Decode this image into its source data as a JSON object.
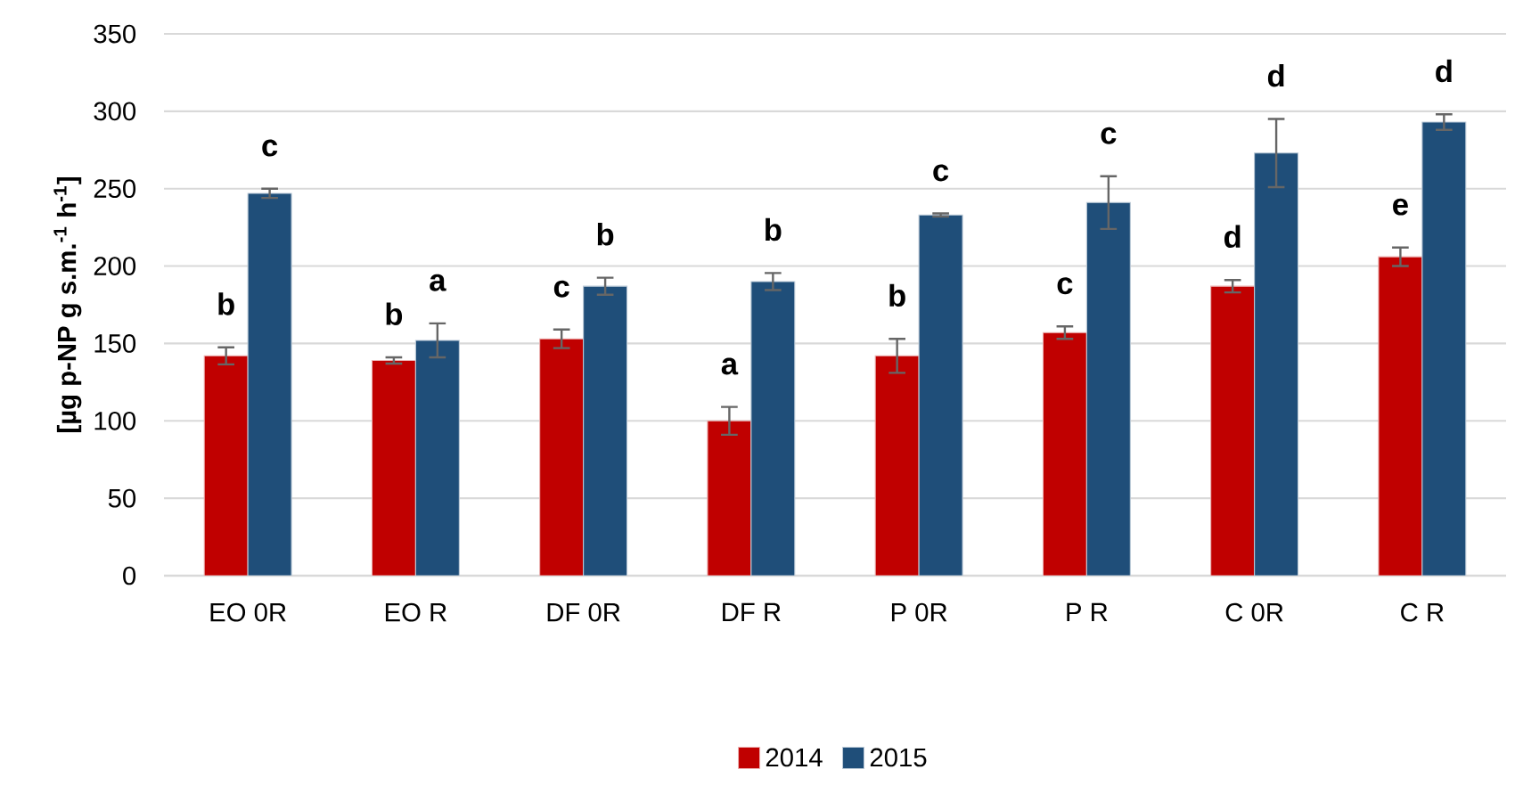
{
  "chart_data": {
    "type": "bar",
    "ylabel": "[µg p-NP g s.m.$^{-1}$ h$^{-1}$]",
    "categories": [
      "EO 0R",
      "EO R",
      "DF 0R",
      "DF R",
      "P 0R",
      "P R",
      "C 0R",
      "C R"
    ],
    "series": [
      {
        "name": "2014",
        "color": "#c00000",
        "values": [
          142,
          139,
          153,
          100,
          142,
          157,
          187,
          206
        ],
        "errors": [
          5.5,
          2,
          6,
          9,
          11,
          4,
          4,
          6
        ]
      },
      {
        "name": "2015",
        "color": "#1f4e79",
        "values": [
          247,
          152,
          187,
          190,
          233,
          241,
          273,
          293
        ],
        "errors": [
          3,
          11,
          5.5,
          5.5,
          1,
          17,
          22,
          5
        ]
      }
    ],
    "ylim": [
      0,
      350
    ],
    "yticks": [
      0,
      50,
      100,
      150,
      200,
      250,
      300,
      350
    ],
    "grid": "y",
    "legend": "bottom",
    "annotations": [
      "b",
      "c",
      "b",
      "a",
      "c",
      "b",
      "a",
      "b",
      "b",
      "c",
      "c",
      "c",
      "d",
      "d",
      "e",
      "d"
    ]
  }
}
